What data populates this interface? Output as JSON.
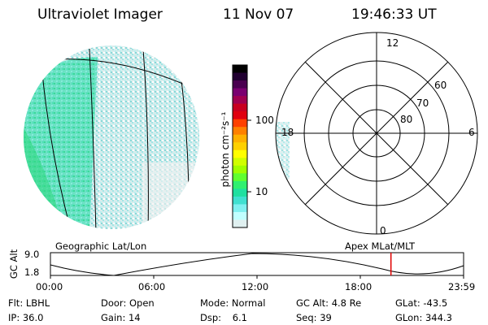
{
  "header": {
    "instrument": "Ultraviolet Imager",
    "date": "11 Nov 07",
    "time": "19:46:33 UT"
  },
  "colorbar": {
    "unit_label": "photon cm⁻²s⁻¹",
    "ticks": [
      "100",
      "10"
    ],
    "colors": [
      "#000000",
      "#200030",
      "#4a0050",
      "#7a0070",
      "#a00050",
      "#c80020",
      "#e00010",
      "#ff4000",
      "#ff8000",
      "#ffb000",
      "#ffd000",
      "#ffff00",
      "#d0ff00",
      "#a0ff00",
      "#60ff30",
      "#30f070",
      "#20e0a0",
      "#40e0d0",
      "#80f0f0",
      "#c0ffff",
      "#e0f0f0"
    ]
  },
  "polar": {
    "mlt_labels": {
      "top": "12",
      "left": "18",
      "right": "6",
      "bottom": "0"
    },
    "lat_labels": [
      "60",
      "70",
      "80"
    ]
  },
  "timeline": {
    "ylabel": "GC Alt",
    "y_ticks": [
      "9.0",
      "1.8"
    ],
    "left_title": "Geographic Lat/Lon",
    "right_title": "Apex MLat/MLT",
    "x_ticks": [
      "00:00",
      "06:00",
      "12:00",
      "18:00",
      "23:59"
    ],
    "marker_time": "19:46",
    "marker_color": "#e00000"
  },
  "status": {
    "row1": [
      {
        "label": "Flt:",
        "value": "LBHL"
      },
      {
        "label": "Door:",
        "value": "Open"
      },
      {
        "label": "Mode:",
        "value": "Normal"
      },
      {
        "label": "GC Alt:",
        "value": "4.8 Re"
      },
      {
        "label": "GLat:",
        "value": "-43.5"
      }
    ],
    "row2": [
      {
        "label": "IP:",
        "value": "36.0"
      },
      {
        "label": "Gain:",
        "value": "14"
      },
      {
        "label": "Dsp:",
        "value": "6.1"
      },
      {
        "label": "Seq:",
        "value": "39"
      },
      {
        "label": "GLon:",
        "value": "344.3"
      }
    ]
  }
}
